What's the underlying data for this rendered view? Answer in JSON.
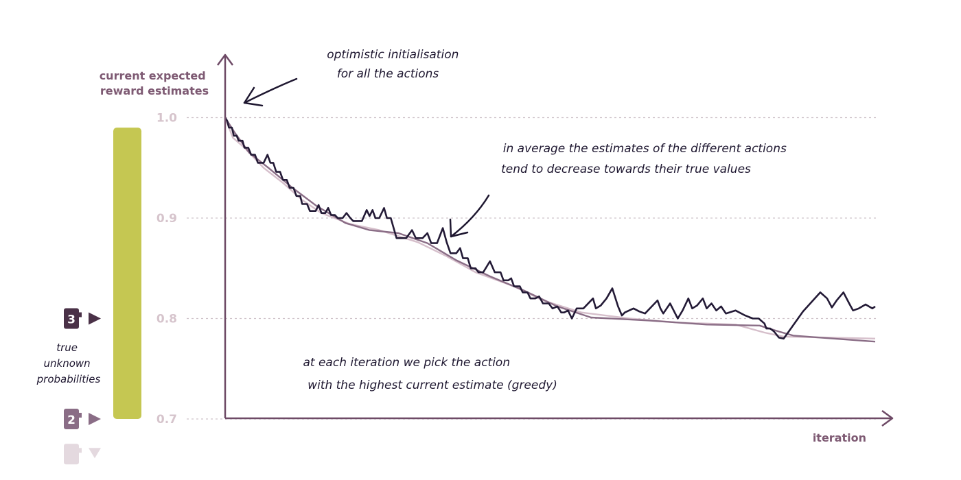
{
  "chart_data": {
    "type": "line",
    "ylabel": "current expected\nreward estimates",
    "xlabel": "iteration",
    "ylim": [
      0.7,
      1.02
    ],
    "xlim": [
      0,
      675
    ],
    "y_ticks": [
      "1.0",
      "0.9",
      "0.8",
      "0.7"
    ],
    "grid": true,
    "colors": {
      "axis": "#6e4a66",
      "grid": "#cfc3ca",
      "bar": "#c5c752",
      "series_dark": "#231a36",
      "series_mid": "#8a6d86",
      "series_light": "#d6bfcb"
    },
    "true_probabilities_bar": [
      0.7,
      0.99
    ],
    "actions": [
      {
        "label": "3",
        "value": 0.8,
        "color": "#4a3147",
        "marker": "right"
      },
      {
        "label": "2",
        "value": 0.7,
        "color": "#8a6d86",
        "marker": "right"
      },
      {
        "label": "",
        "value": 0.665,
        "color": "#e4d9df",
        "marker": "down"
      }
    ],
    "series": [
      {
        "color": "#d6bfcb",
        "points": [
          [
            0,
            1.0
          ],
          [
            8,
            0.98
          ],
          [
            20,
            0.97
          ],
          [
            40,
            0.95
          ],
          [
            60,
            0.935
          ],
          [
            80,
            0.918
          ],
          [
            100,
            0.905
          ],
          [
            130,
            0.894
          ],
          [
            160,
            0.888
          ],
          [
            200,
            0.876
          ],
          [
            230,
            0.862
          ],
          [
            260,
            0.846
          ],
          [
            300,
            0.832
          ],
          [
            330,
            0.818
          ],
          [
            370,
            0.806
          ],
          [
            420,
            0.8
          ],
          [
            470,
            0.796
          ],
          [
            530,
            0.794
          ],
          [
            560,
            0.786
          ],
          [
            580,
            0.782
          ],
          [
            675,
            0.78
          ]
        ]
      },
      {
        "color": "#8a6d86",
        "points": [
          [
            0,
            1.0
          ],
          [
            10,
            0.985
          ],
          [
            25,
            0.965
          ],
          [
            45,
            0.95
          ],
          [
            70,
            0.93
          ],
          [
            95,
            0.912
          ],
          [
            125,
            0.895
          ],
          [
            150,
            0.888
          ],
          [
            180,
            0.885
          ],
          [
            210,
            0.875
          ],
          [
            240,
            0.858
          ],
          [
            275,
            0.842
          ],
          [
            310,
            0.828
          ],
          [
            345,
            0.812
          ],
          [
            380,
            0.801
          ],
          [
            440,
            0.798
          ],
          [
            500,
            0.794
          ],
          [
            555,
            0.793
          ],
          [
            575,
            0.787
          ],
          [
            590,
            0.783
          ],
          [
            675,
            0.777
          ]
        ]
      },
      {
        "color": "#231a36",
        "points": [
          [
            0,
            1.0
          ],
          [
            2,
            0.997
          ],
          [
            4,
            0.99
          ],
          [
            7,
            0.99
          ],
          [
            9,
            0.982
          ],
          [
            12,
            0.982
          ],
          [
            14,
            0.977
          ],
          [
            18,
            0.977
          ],
          [
            20,
            0.97
          ],
          [
            24,
            0.97
          ],
          [
            27,
            0.963
          ],
          [
            31,
            0.963
          ],
          [
            34,
            0.955
          ],
          [
            40,
            0.955
          ],
          [
            44,
            0.963
          ],
          [
            47,
            0.955
          ],
          [
            50,
            0.955
          ],
          [
            53,
            0.946
          ],
          [
            57,
            0.946
          ],
          [
            60,
            0.938
          ],
          [
            64,
            0.938
          ],
          [
            67,
            0.93
          ],
          [
            71,
            0.93
          ],
          [
            74,
            0.922
          ],
          [
            78,
            0.922
          ],
          [
            80,
            0.914
          ],
          [
            85,
            0.914
          ],
          [
            88,
            0.907
          ],
          [
            94,
            0.907
          ],
          [
            97,
            0.913
          ],
          [
            100,
            0.905
          ],
          [
            104,
            0.905
          ],
          [
            107,
            0.91
          ],
          [
            110,
            0.903
          ],
          [
            114,
            0.903
          ],
          [
            117,
            0.9
          ],
          [
            122,
            0.9
          ],
          [
            126,
            0.905
          ],
          [
            130,
            0.9
          ],
          [
            133,
            0.897
          ],
          [
            142,
            0.897
          ],
          [
            147,
            0.908
          ],
          [
            150,
            0.902
          ],
          [
            153,
            0.908
          ],
          [
            156,
            0.9
          ],
          [
            160,
            0.9
          ],
          [
            165,
            0.91
          ],
          [
            168,
            0.9
          ],
          [
            172,
            0.9
          ],
          [
            178,
            0.88
          ],
          [
            188,
            0.88
          ],
          [
            194,
            0.888
          ],
          [
            198,
            0.88
          ],
          [
            205,
            0.88
          ],
          [
            210,
            0.885
          ],
          [
            214,
            0.875
          ],
          [
            220,
            0.875
          ],
          [
            226,
            0.89
          ],
          [
            230,
            0.876
          ],
          [
            234,
            0.865
          ],
          [
            240,
            0.865
          ],
          [
            244,
            0.87
          ],
          [
            247,
            0.86
          ],
          [
            252,
            0.86
          ],
          [
            255,
            0.85
          ],
          [
            260,
            0.85
          ],
          [
            263,
            0.846
          ],
          [
            268,
            0.846
          ],
          [
            275,
            0.857
          ],
          [
            280,
            0.846
          ],
          [
            286,
            0.846
          ],
          [
            289,
            0.838
          ],
          [
            294,
            0.838
          ],
          [
            297,
            0.84
          ],
          [
            300,
            0.832
          ],
          [
            306,
            0.832
          ],
          [
            309,
            0.826
          ],
          [
            314,
            0.826
          ],
          [
            317,
            0.82
          ],
          [
            322,
            0.82
          ],
          [
            326,
            0.822
          ],
          [
            330,
            0.815
          ],
          [
            336,
            0.815
          ],
          [
            340,
            0.81
          ],
          [
            345,
            0.812
          ],
          [
            349,
            0.806
          ],
          [
            352,
            0.806
          ],
          [
            356,
            0.808
          ],
          [
            360,
            0.8
          ],
          [
            365,
            0.81
          ],
          [
            372,
            0.81
          ],
          [
            382,
            0.82
          ],
          [
            385,
            0.81
          ],
          [
            390,
            0.813
          ],
          [
            396,
            0.82
          ],
          [
            402,
            0.83
          ],
          [
            408,
            0.812
          ],
          [
            412,
            0.803
          ],
          [
            415,
            0.806
          ],
          [
            424,
            0.81
          ],
          [
            430,
            0.807
          ],
          [
            436,
            0.805
          ],
          [
            442,
            0.811
          ],
          [
            449,
            0.818
          ],
          [
            452,
            0.81
          ],
          [
            455,
            0.805
          ],
          [
            462,
            0.815
          ],
          [
            470,
            0.8
          ],
          [
            475,
            0.808
          ],
          [
            481,
            0.82
          ],
          [
            485,
            0.81
          ],
          [
            490,
            0.813
          ],
          [
            496,
            0.82
          ],
          [
            500,
            0.81
          ],
          [
            505,
            0.815
          ],
          [
            510,
            0.808
          ],
          [
            515,
            0.812
          ],
          [
            520,
            0.805
          ],
          [
            530,
            0.808
          ],
          [
            540,
            0.803
          ],
          [
            548,
            0.8
          ],
          [
            554,
            0.8
          ],
          [
            560,
            0.795
          ],
          [
            562,
            0.79
          ],
          [
            566,
            0.79
          ],
          [
            570,
            0.787
          ],
          [
            575,
            0.781
          ],
          [
            580,
            0.78
          ],
          [
            600,
            0.807
          ],
          [
            618,
            0.826
          ],
          [
            625,
            0.82
          ],
          [
            630,
            0.811
          ],
          [
            635,
            0.818
          ],
          [
            642,
            0.826
          ],
          [
            648,
            0.815
          ],
          [
            652,
            0.808
          ],
          [
            658,
            0.81
          ],
          [
            665,
            0.814
          ],
          [
            672,
            0.81
          ],
          [
            675,
            0.812
          ]
        ]
      }
    ]
  },
  "annotations": {
    "opt_init": [
      "optimistic initialisation",
      "for all the actions"
    ],
    "average": [
      "in average the estimates of the different actions",
      "tend to decrease towards their true values"
    ],
    "greedy": [
      "at each iteration we pick the action",
      "with the highest current estimate (greedy)"
    ],
    "true_unknown": [
      "true",
      "unknown",
      "probabilities"
    ]
  }
}
